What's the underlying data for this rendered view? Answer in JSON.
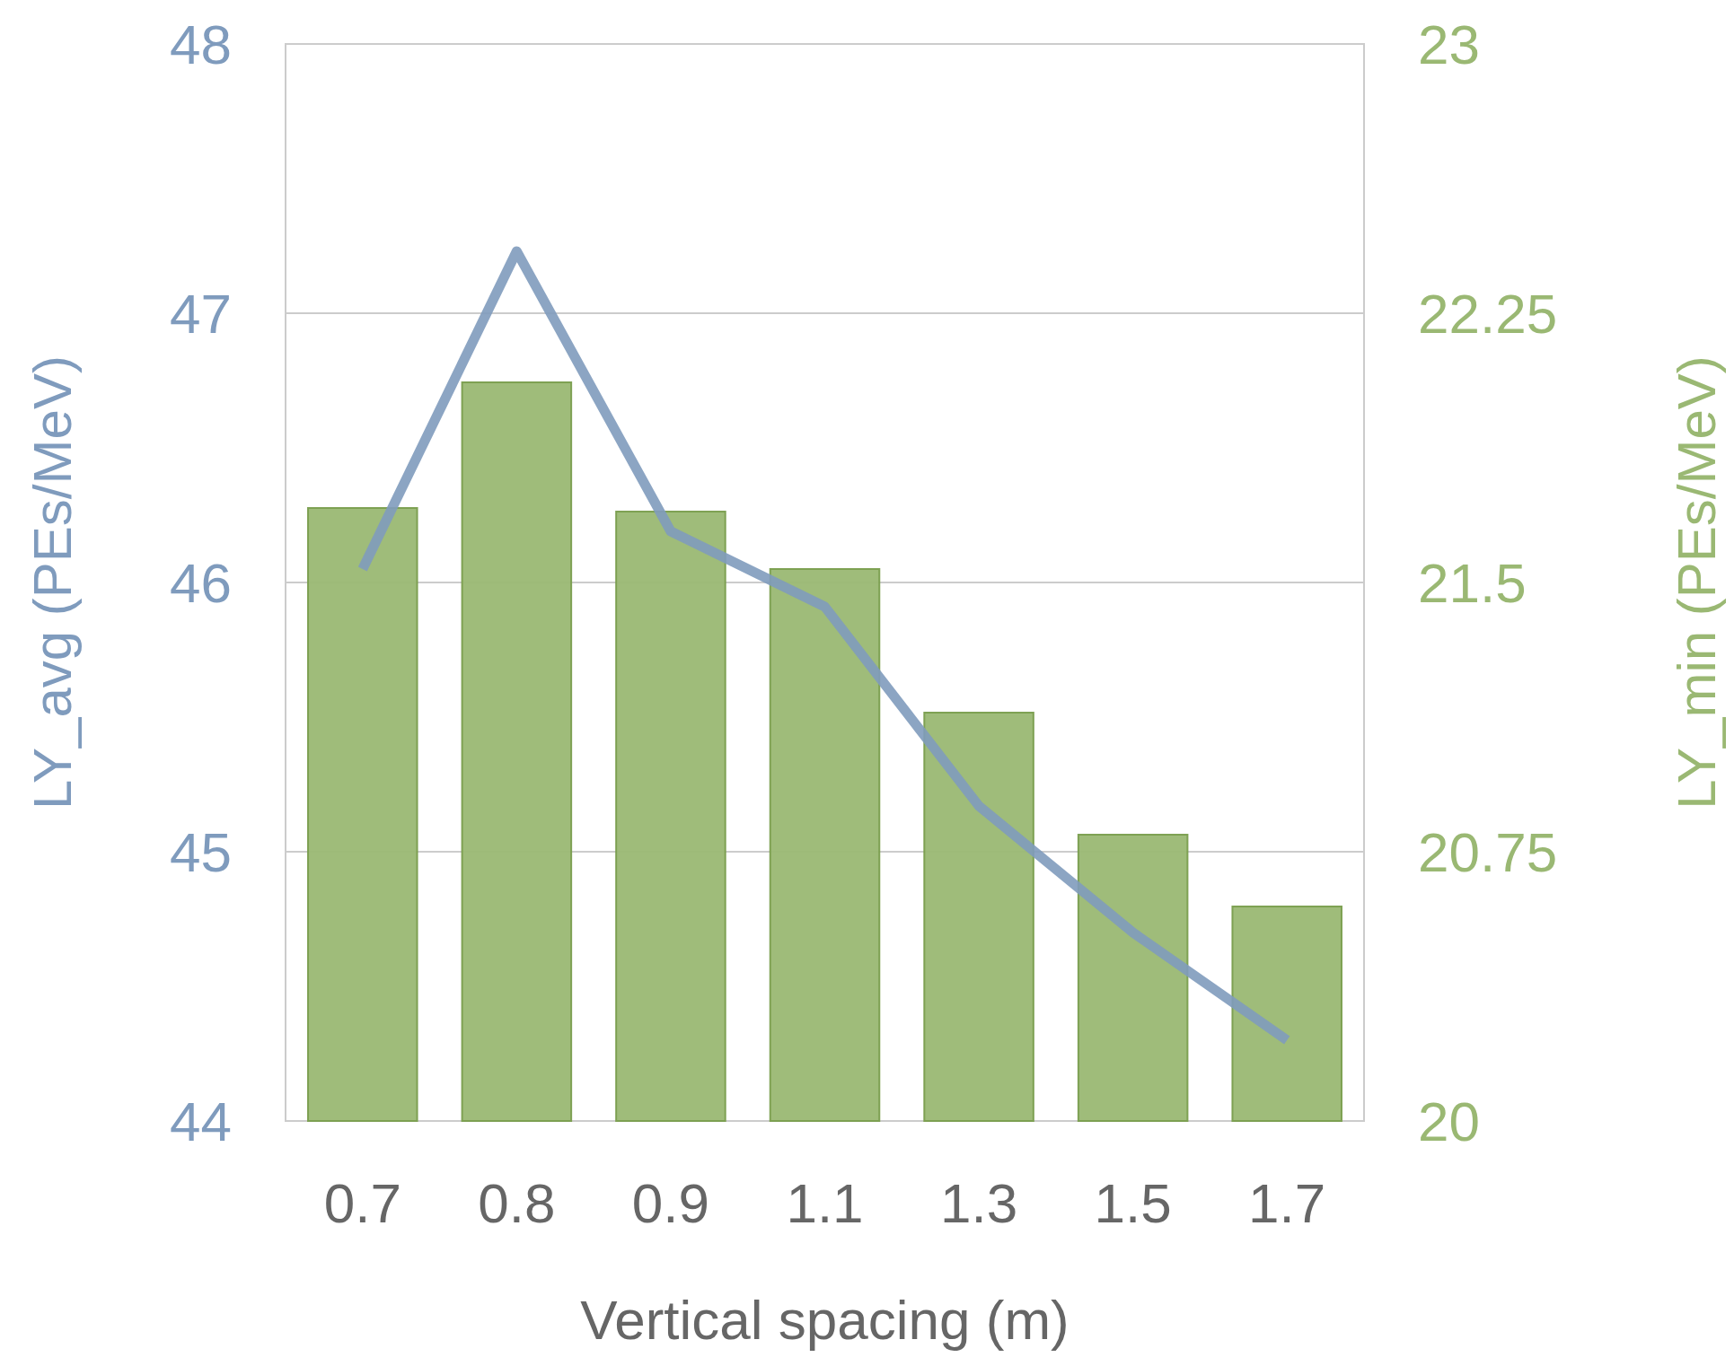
{
  "chart_data": {
    "type": "bar",
    "xlabel": "Vertical spacing (m)",
    "ylabel": "LY_avg (PEs/MeV)",
    "y2label": "LY_min (PEs/MeV)",
    "categories": [
      "0.7",
      "0.8",
      "0.9",
      "1.1",
      "1.3",
      "1.5",
      "1.7"
    ],
    "series": [
      {
        "axis": "y2",
        "color": "#9ab873",
        "values": [
          21.71,
          22.06,
          21.7,
          21.54,
          21.14,
          20.8,
          20.6
        ]
      },
      {
        "type": "line",
        "axis": "y",
        "color": "#7f9bbd",
        "values": [
          46.05,
          47.23,
          46.19,
          45.91,
          45.17,
          44.7,
          44.3
        ]
      }
    ],
    "ylim": [
      44,
      48
    ],
    "yticks": [
      44,
      45,
      46,
      47,
      48
    ],
    "y2lim": [
      20,
      23
    ],
    "y2ticks": [
      20,
      20.75,
      21.5,
      22.25,
      23
    ],
    "grid": "y",
    "marker": "none",
    "line_style": "solid"
  }
}
